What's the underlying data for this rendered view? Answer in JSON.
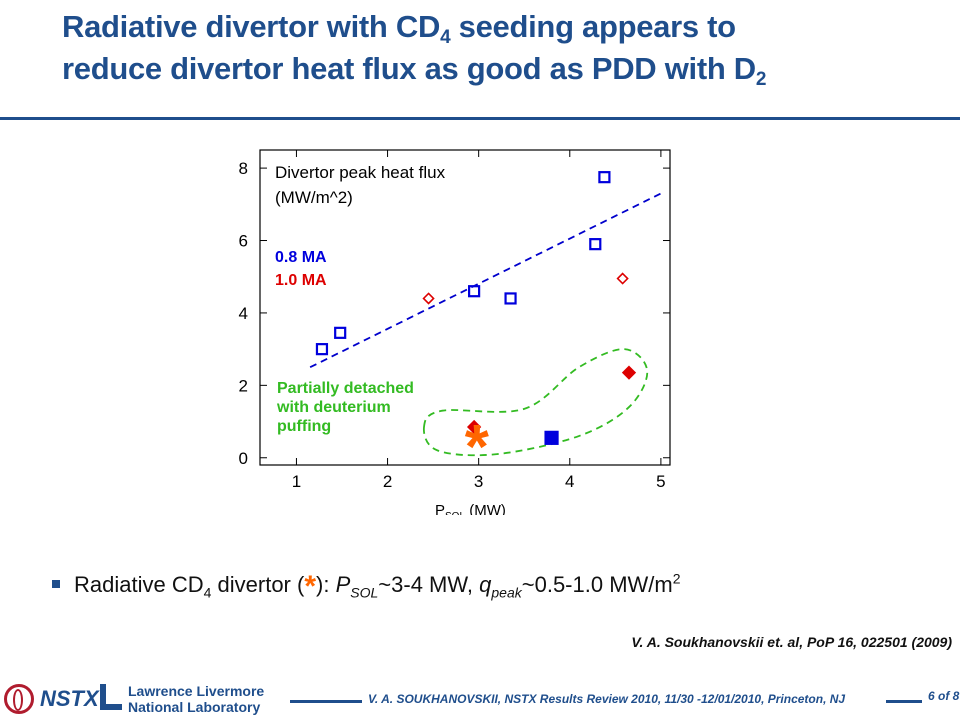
{
  "slide": {
    "title_line1_part1": "Radiative divertor with CD",
    "title_line1_sub": "4",
    "title_line1_part2": " seeding appears to",
    "title_line2_part1": "reduce divertor heat flux as good as PDD with D",
    "title_line2_sub": "2",
    "bullet": {
      "t1": "Radiative CD",
      "s1": "4",
      "t2": " divertor (",
      "star": "*",
      "t3": "): ",
      "p": "P",
      "psub": "SOL",
      "t4": "~3-4 MW, ",
      "q": "q",
      "qsub": "peak",
      "t5": "~0.5-1.0 MW/m",
      "sup": "2"
    },
    "reference": "V. A. Soukhanovskii et. al, PoP 16, 022501 (2009)",
    "footer": {
      "org1": "NSTX",
      "org2_line1": "Lawrence Livermore",
      "org2_line2": "National Laboratory",
      "text": "V. A. SOUKHANOVSKII, NSTX Results Review 2010, 11/30 -12/01/2010, Princeton, NJ",
      "page": "6 of 8"
    }
  },
  "chart_data": {
    "type": "scatter",
    "title_line1": "Divertor peak heat flux",
    "title_line2": "(MW/m^2)",
    "xlabel_main": "P",
    "xlabel_sub": "SOL",
    "xlabel_unit": " (MW)",
    "xlim": [
      0.6,
      5.1
    ],
    "ylim": [
      -0.2,
      8.5
    ],
    "xticks": [
      1,
      2,
      3,
      4,
      5
    ],
    "yticks": [
      0,
      2,
      4,
      6,
      8
    ],
    "series": [
      {
        "name": "0.8 MA",
        "color": "#0000dd",
        "marker": "square-open",
        "points": [
          [
            1.28,
            3.0
          ],
          [
            1.48,
            3.45
          ],
          [
            2.95,
            4.6
          ],
          [
            3.35,
            4.4
          ],
          [
            4.28,
            5.9
          ],
          [
            4.38,
            7.75
          ]
        ]
      },
      {
        "name": "1.0 MA",
        "color": "#dd0000",
        "marker": "diamond-open",
        "points": [
          [
            2.45,
            4.4
          ],
          [
            4.58,
            4.95
          ]
        ]
      },
      {
        "color": "#0000dd",
        "marker": "square-filled",
        "points": [
          [
            3.8,
            0.55
          ]
        ]
      },
      {
        "color": "#dd0000",
        "marker": "diamond-filled",
        "points": [
          [
            2.95,
            0.85
          ],
          [
            4.65,
            2.35
          ]
        ]
      }
    ],
    "fit_line": {
      "color": "#0000cc",
      "points": [
        [
          1.15,
          2.5
        ],
        [
          5.0,
          7.3
        ]
      ]
    },
    "annotation": {
      "lines": [
        "Partially detached",
        "with deuterium",
        "puffing"
      ],
      "color": "#33bb22"
    },
    "star": {
      "symbol": "*",
      "color": "#ff6600",
      "x": 2.98,
      "y": 0.55
    }
  }
}
